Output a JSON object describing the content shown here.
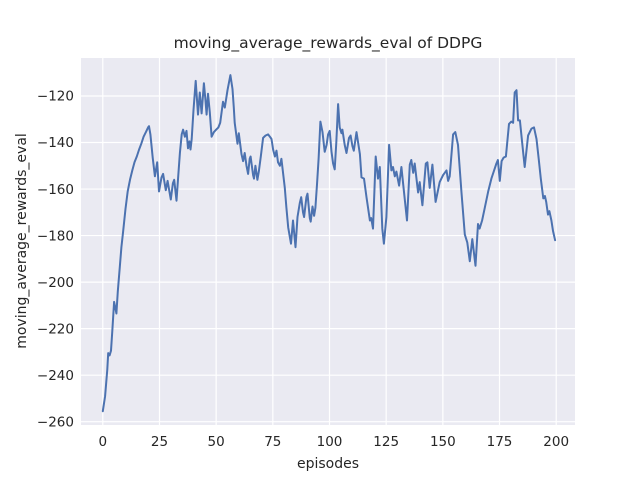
{
  "figure": {
    "title": "moving_average_rewards_eval of DDPG"
  },
  "axes": {
    "xlabel": "episodes",
    "ylabel": "moving_average_rewards_eval",
    "x_ticks": [
      0,
      25,
      50,
      75,
      100,
      125,
      150,
      175,
      200
    ],
    "y_ticks": [
      -260,
      -240,
      -220,
      -200,
      -180,
      -160,
      -140,
      -120
    ]
  },
  "colors": {
    "line": "#4c72b0",
    "plot_background": "#eaeaf2",
    "grid": "#ffffff",
    "text": "#262626",
    "figure_background": "#ffffff"
  },
  "chart_data": {
    "type": "line",
    "title": "moving_average_rewards_eval of DDPG",
    "xlabel": "episodes",
    "ylabel": "moving_average_rewards_eval",
    "xlim": [
      -9.7,
      208.3
    ],
    "ylim": [
      -261.5,
      -103.5
    ],
    "grid": true,
    "legend": false,
    "series": [
      {
        "name": "moving_average_rewards_eval",
        "color": "#4c72b0",
        "points": [
          [
            0,
            -255.5
          ],
          [
            1,
            -249
          ],
          [
            2,
            -237.5
          ],
          [
            2.4,
            -230.5
          ],
          [
            3,
            -231.5
          ],
          [
            3.6,
            -229.5
          ],
          [
            4.2,
            -221
          ],
          [
            5,
            -208.5
          ],
          [
            5.5,
            -211
          ],
          [
            6,
            -213.5
          ],
          [
            6.6,
            -204
          ],
          [
            7.5,
            -193.5
          ],
          [
            8.2,
            -185
          ],
          [
            9,
            -178
          ],
          [
            10,
            -168.5
          ],
          [
            11,
            -161
          ],
          [
            12,
            -156
          ],
          [
            13,
            -152
          ],
          [
            14,
            -148.5
          ],
          [
            15,
            -146
          ],
          [
            16,
            -143
          ],
          [
            17,
            -140.5
          ],
          [
            18,
            -137.5
          ],
          [
            19,
            -135.5
          ],
          [
            20,
            -133.5
          ],
          [
            20.4,
            -133
          ],
          [
            21,
            -136.5
          ],
          [
            22,
            -146.5
          ],
          [
            23,
            -154.5
          ],
          [
            24,
            -148.5
          ],
          [
            24.8,
            -161
          ],
          [
            25.9,
            -155
          ],
          [
            26.6,
            -153.5
          ],
          [
            27.8,
            -160.5
          ],
          [
            28.6,
            -156.5
          ],
          [
            30,
            -164.5
          ],
          [
            30.9,
            -157.5
          ],
          [
            31.5,
            -156
          ],
          [
            32.5,
            -165
          ],
          [
            33.3,
            -154
          ],
          [
            34,
            -144.5
          ],
          [
            34.8,
            -136.5
          ],
          [
            35.4,
            -134.5
          ],
          [
            36.2,
            -137.5
          ],
          [
            36.9,
            -135
          ],
          [
            37.6,
            -142.5
          ],
          [
            38.2,
            -139.5
          ],
          [
            38.7,
            -143
          ],
          [
            39.2,
            -138.5
          ],
          [
            40,
            -126
          ],
          [
            41,
            -113.5
          ],
          [
            42,
            -128
          ],
          [
            42.8,
            -118.5
          ],
          [
            43.6,
            -127.5
          ],
          [
            44.6,
            -114.5
          ],
          [
            45.2,
            -121
          ],
          [
            45.8,
            -128
          ],
          [
            46.4,
            -119
          ],
          [
            47.2,
            -127
          ],
          [
            48,
            -137.5
          ],
          [
            49,
            -135.5
          ],
          [
            50,
            -134.5
          ],
          [
            51,
            -133.5
          ],
          [
            51.8,
            -131.5
          ],
          [
            53,
            -122.5
          ],
          [
            53.8,
            -125
          ],
          [
            55,
            -117.5
          ],
          [
            56.3,
            -111
          ],
          [
            57.2,
            -117
          ],
          [
            57.8,
            -125
          ],
          [
            58.2,
            -131.5
          ],
          [
            59.4,
            -140.5
          ],
          [
            60,
            -136
          ],
          [
            61.2,
            -145
          ],
          [
            61.9,
            -148
          ],
          [
            62.6,
            -144.5
          ],
          [
            63.4,
            -150
          ],
          [
            64.1,
            -153.5
          ],
          [
            64.8,
            -147
          ],
          [
            65.2,
            -146
          ],
          [
            66.3,
            -154
          ],
          [
            66.7,
            -155.5
          ],
          [
            67.3,
            -150
          ],
          [
            68.2,
            -156
          ],
          [
            68.8,
            -152.5
          ],
          [
            69.7,
            -146
          ],
          [
            70.7,
            -138
          ],
          [
            71.8,
            -137
          ],
          [
            72.9,
            -136.5
          ],
          [
            73.7,
            -137.5
          ],
          [
            74.4,
            -138.5
          ],
          [
            75.1,
            -143
          ],
          [
            75.9,
            -146
          ],
          [
            76.6,
            -143.5
          ],
          [
            77.3,
            -148.5
          ],
          [
            78.1,
            -150
          ],
          [
            78.8,
            -147
          ],
          [
            80.3,
            -159.5
          ],
          [
            81,
            -168
          ],
          [
            81.8,
            -176.5
          ],
          [
            83,
            -183.5
          ],
          [
            83.9,
            -173.5
          ],
          [
            85,
            -185
          ],
          [
            85.9,
            -172
          ],
          [
            86.9,
            -166
          ],
          [
            87.5,
            -163.5
          ],
          [
            88.3,
            -170
          ],
          [
            88.8,
            -172
          ],
          [
            89.8,
            -163.5
          ],
          [
            90.3,
            -162
          ],
          [
            91.3,
            -172.5
          ],
          [
            91.7,
            -174
          ],
          [
            92.5,
            -167.5
          ],
          [
            93.2,
            -171.5
          ],
          [
            93.8,
            -168
          ],
          [
            94.5,
            -158
          ],
          [
            95.2,
            -147
          ],
          [
            96,
            -131
          ],
          [
            96.9,
            -135.5
          ],
          [
            97.9,
            -144
          ],
          [
            98.7,
            -141
          ],
          [
            99.4,
            -136.5
          ],
          [
            100.1,
            -135
          ],
          [
            100.9,
            -144
          ],
          [
            101.6,
            -149
          ],
          [
            102.3,
            -151.5
          ],
          [
            103,
            -140
          ],
          [
            103.8,
            -123.5
          ],
          [
            104.5,
            -133.5
          ],
          [
            105.3,
            -136
          ],
          [
            105.7,
            -134.5
          ],
          [
            106.7,
            -141
          ],
          [
            107.5,
            -144.5
          ],
          [
            108.6,
            -138
          ],
          [
            109.3,
            -137
          ],
          [
            110.1,
            -141.5
          ],
          [
            110.7,
            -143.5
          ],
          [
            111.9,
            -135.5
          ],
          [
            113.4,
            -145
          ],
          [
            114.1,
            -155
          ],
          [
            115.2,
            -155.5
          ],
          [
            116.3,
            -163.5
          ],
          [
            117.8,
            -173.5
          ],
          [
            118.4,
            -172.5
          ],
          [
            119.2,
            -177
          ],
          [
            120.4,
            -146
          ],
          [
            121.4,
            -155.5
          ],
          [
            122.2,
            -150.5
          ],
          [
            123.3,
            -177
          ],
          [
            124,
            -183.5
          ],
          [
            125.1,
            -172
          ],
          [
            126.3,
            -141
          ],
          [
            127.3,
            -152
          ],
          [
            128,
            -150.5
          ],
          [
            128.8,
            -154.5
          ],
          [
            129.5,
            -152.5
          ],
          [
            130.7,
            -158.5
          ],
          [
            131.7,
            -150.5
          ],
          [
            132.5,
            -158
          ],
          [
            134.2,
            -173.5
          ],
          [
            135.4,
            -149.5
          ],
          [
            136.1,
            -147.5
          ],
          [
            136.9,
            -153
          ],
          [
            137.6,
            -149
          ],
          [
            139.1,
            -161.5
          ],
          [
            139.8,
            -157
          ],
          [
            141,
            -167
          ],
          [
            142.5,
            -149
          ],
          [
            143.2,
            -148.5
          ],
          [
            144.2,
            -159.5
          ],
          [
            145.4,
            -149.5
          ],
          [
            146.8,
            -165.5
          ],
          [
            148.6,
            -157
          ],
          [
            150.1,
            -154
          ],
          [
            151.6,
            -152
          ],
          [
            152.3,
            -156.5
          ],
          [
            153,
            -154.5
          ],
          [
            154.5,
            -136.5
          ],
          [
            155.5,
            -135.5
          ],
          [
            156.7,
            -141
          ],
          [
            158.2,
            -161
          ],
          [
            159.7,
            -179.5
          ],
          [
            160.8,
            -183
          ],
          [
            161.9,
            -191
          ],
          [
            163,
            -181.5
          ],
          [
            164.4,
            -193
          ],
          [
            165.5,
            -175
          ],
          [
            166.2,
            -177
          ],
          [
            167.3,
            -173.5
          ],
          [
            168.5,
            -168
          ],
          [
            170,
            -161
          ],
          [
            171.4,
            -155.5
          ],
          [
            172.6,
            -152
          ],
          [
            173.6,
            -149
          ],
          [
            174.3,
            -147.5
          ],
          [
            175.1,
            -156.5
          ],
          [
            175.9,
            -148
          ],
          [
            176.8,
            -146.5
          ],
          [
            177.8,
            -146
          ],
          [
            179.2,
            -132
          ],
          [
            180.2,
            -131
          ],
          [
            181,
            -131.5
          ],
          [
            181.7,
            -118.5
          ],
          [
            182.5,
            -117.5
          ],
          [
            183.2,
            -130.5
          ],
          [
            184,
            -130.5
          ],
          [
            185.4,
            -144
          ],
          [
            186.1,
            -150.5
          ],
          [
            187.6,
            -137
          ],
          [
            189.1,
            -134
          ],
          [
            190.2,
            -133.5
          ],
          [
            191.3,
            -138.5
          ],
          [
            192.3,
            -147
          ],
          [
            193.2,
            -155.5
          ],
          [
            194.3,
            -164
          ],
          [
            195,
            -163
          ],
          [
            195.6,
            -165.5
          ],
          [
            196.4,
            -171
          ],
          [
            197,
            -169.5
          ],
          [
            197.9,
            -173.5
          ],
          [
            198.6,
            -178
          ],
          [
            199.5,
            -182
          ]
        ]
      }
    ]
  }
}
